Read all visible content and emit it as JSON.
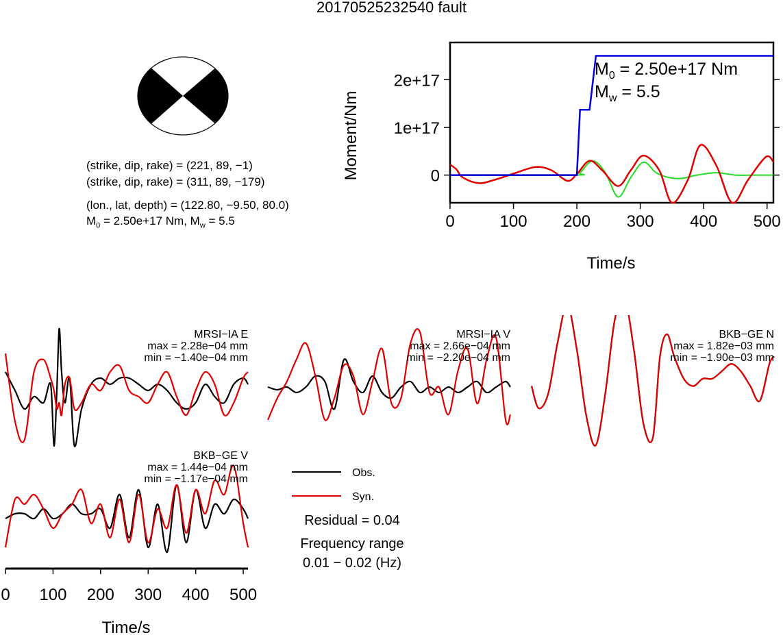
{
  "title": "20170525232540 fault",
  "mechanism": {
    "np1": "(strike, dip, rake) = (221, 89, −1)",
    "np2": "(strike, dip, rake) = (311, 89, −179)",
    "location": "(lon., lat, depth) = (122.80, −9.50, 80.0)",
    "m0_prefix": "M",
    "m0_sub": "0",
    "m0_value": " = 2.50e+17 Nm, M",
    "mw_sub": "w",
    "mw_value": " = 5.5"
  },
  "moment_chart": {
    "ylabel": "Moment/Nm",
    "xlabel": "Time/s",
    "annotation_m0": {
      "prefix": "M",
      "sub": "0",
      "value": " = 2.50e+17 Nm"
    },
    "annotation_mw": {
      "prefix": "M",
      "sub": "w",
      "value": " = 5.5"
    },
    "colors": {
      "moment": "#0000dd",
      "red": "#e00000",
      "green": "#22dd22"
    }
  },
  "waveform_panels": [
    {
      "station": "MRSI−IA E",
      "max": "max = 2.28e−04 mm",
      "min": "min = −1.40e−04 mm"
    },
    {
      "station": "MRSI−IA V",
      "max": "max = 2.66e−04 mm",
      "min": "min = −2.20e−04 mm"
    },
    {
      "station": "BKB−GE N",
      "max": "max = 1.82e−03 mm",
      "min": "min = −1.90e−03 mm"
    },
    {
      "station": "BKB−GE V",
      "max": "max = 1.44e−04 mm",
      "min": "min = −1.17e−04 mm"
    }
  ],
  "waveform_axis": {
    "xlabel": "Time/s",
    "ticks": [
      "0",
      "100",
      "200",
      "300",
      "400",
      "500"
    ]
  },
  "legend": {
    "obs": "Obs.",
    "syn": "Syn.",
    "obs_color": "#000000",
    "syn_color": "#e00000"
  },
  "residual": "Residual = 0.04",
  "freq_label": "Frequency range",
  "freq_value": "0.01 − 0.02 (Hz)",
  "chart_data": {
    "type": "line",
    "title": "20170525232540 fault",
    "xlabel": "Time/s",
    "ylabel": "Moment/Nm",
    "xlim": [
      0,
      510
    ],
    "ylim": [
      -5.8e+16,
      2.78e+17
    ],
    "x_ticks": [
      0,
      100,
      200,
      300,
      400,
      500
    ],
    "y_ticks": [
      0,
      1e+17,
      2e+17
    ],
    "y_tick_labels": [
      "0",
      "1e+17",
      "2e+17"
    ],
    "grid": false,
    "series": [
      {
        "values_x": [
          0,
          200,
          205,
          219,
          220,
          230,
          510
        ],
        "values_y": [
          0,
          0,
          1.37e+17,
          1.37e+17,
          1.37e+17,
          2.5e+17,
          2.5e+17
        ]
      },
      {
        "values_x": [
          0,
          10,
          20,
          45,
          70,
          100,
          135,
          160,
          185,
          200,
          220,
          240,
          265,
          285,
          305,
          330,
          350,
          375,
          395,
          420,
          445,
          470,
          498,
          510
        ],
        "values_y": [
          2.2e+16,
          1.2e+16,
          -5000000000000000.0,
          -1.7e+16,
          -1e+16,
          3000000000000000.0,
          1.7e+16,
          1e+16,
          -1.2e+16,
          2000000000000000.0,
          3e+16,
          1e+16,
          -2.3e+16,
          1e+16,
          4.1e+16,
          1e+16,
          -5.8e+16,
          -1e+16,
          6.3e+16,
          2e+16,
          -5.8e+16,
          -1e+16,
          3.8e+16,
          2.8e+16
        ]
      },
      {
        "values_x": [
          0,
          195,
          205,
          225,
          245,
          265,
          285,
          305,
          325,
          345,
          365,
          390,
          420,
          450,
          480,
          510
        ],
        "values_y": [
          0,
          0,
          5000000000000000.0,
          3e+16,
          5000000000000000.0,
          -4.6e+16,
          -5000000000000000.0,
          2.7e+16,
          5000000000000000.0,
          -5000000000000000.0,
          -7000000000000000.0,
          0,
          5000000000000000.0,
          0,
          0,
          0
        ]
      }
    ],
    "waveforms": [
      {
        "station": "MRSI−IA E",
        "x_s": [
          0,
          20,
          40,
          60,
          80,
          95,
          102,
          108,
          113,
          118,
          125,
          135,
          145,
          160,
          180,
          200,
          220,
          240,
          260,
          280,
          300,
          320,
          340,
          360,
          380,
          400,
          420,
          440,
          460,
          480,
          500,
          510
        ],
        "obs": [
          0.3,
          0.0,
          -0.3,
          -0.1,
          -0.2,
          0.1,
          -0.9,
          0.0,
          1.0,
          0.3,
          -0.2,
          0.2,
          -0.9,
          -0.3,
          0.1,
          0.2,
          0.1,
          0.2,
          0.2,
          0.1,
          0.0,
          0.1,
          0.0,
          -0.2,
          -0.3,
          -0.2,
          0.1,
          -0.1,
          -0.2,
          0.1,
          0.2,
          0.1
        ],
        "syn": [
          0.6,
          -0.5,
          -0.8,
          0.3,
          0.5,
          0.2,
          0.0,
          -0.3,
          -0.2,
          -0.4,
          0.1,
          0.2,
          -0.3,
          -0.2,
          0.1,
          0.0,
          0.3,
          0.4,
          0.0,
          -0.1,
          -0.2,
          0.1,
          0.3,
          -0.1,
          -0.4,
          0.0,
          0.3,
          0.1,
          -0.4,
          -0.2,
          0.2,
          0.3
        ]
      },
      {
        "station": "MRSI−IA V",
        "x_s": [
          0,
          20,
          40,
          60,
          80,
          100,
          120,
          140,
          160,
          180,
          200,
          220,
          240,
          260,
          280,
          300,
          320,
          340,
          360,
          380,
          400,
          420,
          440,
          460,
          480,
          500,
          510
        ],
        "obs": [
          0.0,
          -0.05,
          0.0,
          -0.1,
          0.0,
          0.2,
          0.1,
          -0.4,
          0.5,
          0.1,
          -0.1,
          0.2,
          -0.1,
          -0.2,
          0.0,
          0.1,
          -0.1,
          0.0,
          -0.1,
          0.0,
          -0.1,
          0.0,
          0.1,
          -0.1,
          0.0,
          0.1,
          0.0
        ],
        "syn": [
          -0.6,
          -0.2,
          0.1,
          0.5,
          0.8,
          0.2,
          -0.6,
          -0.2,
          0.4,
          0.2,
          -0.5,
          0.1,
          0.7,
          -0.3,
          -0.2,
          0.8,
          1.0,
          -0.1,
          0.0,
          -0.5,
          0.3,
          0.7,
          -0.3,
          0.5,
          0.9,
          -0.6,
          -0.5
        ]
      },
      {
        "station": "BKB−GE N",
        "x_s": [
          0,
          15,
          35,
          55,
          75,
          95,
          115,
          135,
          155,
          175,
          195,
          215,
          235,
          255,
          270,
          285,
          300,
          320,
          340,
          360,
          380,
          400,
          420,
          440,
          460,
          480,
          500,
          510
        ],
        "obs": [
          -0.2,
          -0.5,
          -0.3,
          0.4,
          0.9,
          0.3,
          -0.6,
          -1.0,
          -0.3,
          0.7,
          1.0,
          0.3,
          -0.7,
          -0.9,
          0.2,
          0.5,
          0.2,
          -0.1,
          -0.2,
          -0.1,
          -0.1,
          0.0,
          0.1,
          0.0,
          -0.2,
          -0.4,
          0.1,
          0.2
        ],
        "syn": [
          -0.2,
          -0.5,
          -0.3,
          0.4,
          0.9,
          0.3,
          -0.6,
          -1.0,
          -0.3,
          0.7,
          1.0,
          0.3,
          -0.7,
          -0.9,
          0.2,
          0.5,
          0.2,
          -0.1,
          -0.2,
          -0.1,
          -0.1,
          0.0,
          0.1,
          0.0,
          -0.2,
          -0.4,
          0.1,
          0.2
        ]
      },
      {
        "station": "BKB−GE V",
        "x_s": [
          0,
          20,
          40,
          60,
          80,
          100,
          120,
          140,
          160,
          180,
          200,
          220,
          240,
          260,
          280,
          300,
          320,
          340,
          360,
          380,
          400,
          420,
          440,
          460,
          480,
          500,
          510
        ],
        "obs": [
          -0.1,
          0.0,
          0.0,
          -0.1,
          0.1,
          -0.1,
          0.0,
          0.2,
          0.0,
          0.0,
          0.1,
          -0.3,
          0.4,
          -0.5,
          0.5,
          -0.7,
          0.2,
          -0.8,
          0.6,
          -0.6,
          0.5,
          -0.3,
          0.2,
          0.0,
          0.3,
          0.1,
          -0.1
        ],
        "syn": [
          -0.7,
          0.3,
          0.2,
          0.4,
          0.1,
          -0.3,
          0.0,
          0.2,
          0.5,
          -0.2,
          0.2,
          -0.5,
          0.3,
          -0.6,
          0.4,
          -0.6,
          0.1,
          -0.3,
          0.6,
          -0.4,
          0.5,
          0.0,
          0.7,
          0.4,
          1.0,
          -0.2,
          -0.7
        ]
      }
    ]
  }
}
